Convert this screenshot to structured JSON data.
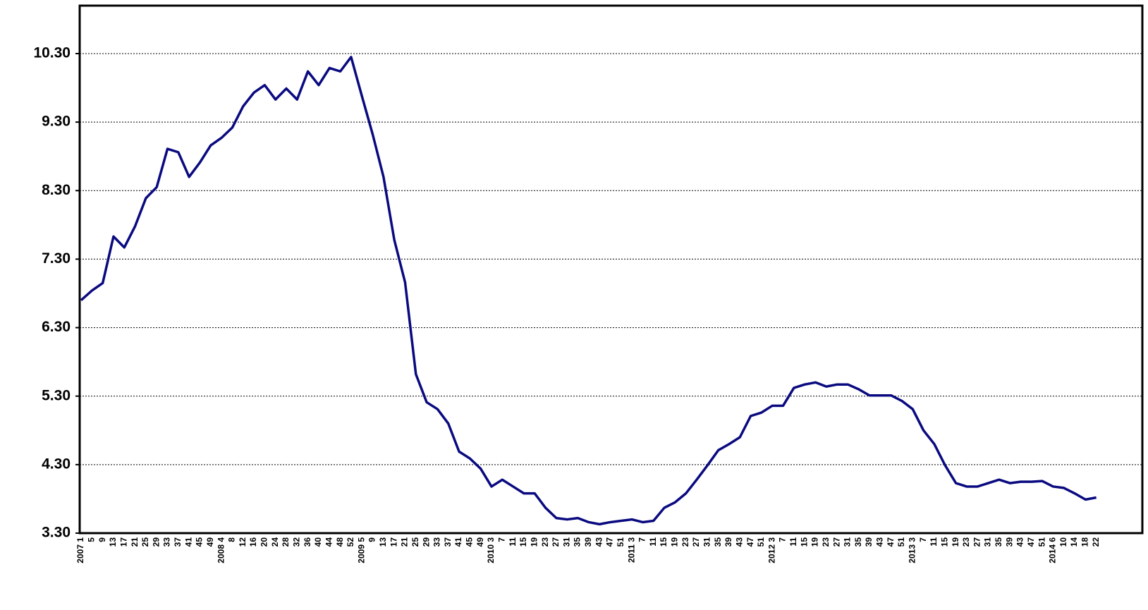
{
  "chart_data": {
    "type": "line",
    "categories": [
      "2007 1",
      "5",
      "9",
      "13",
      "17",
      "21",
      "25",
      "29",
      "33",
      "37",
      "41",
      "45",
      "49",
      "2008 4",
      "8",
      "12",
      "16",
      "20",
      "24",
      "28",
      "32",
      "36",
      "40",
      "44",
      "48",
      "52",
      "2009 5",
      "9",
      "13",
      "17",
      "21",
      "25",
      "29",
      "33",
      "37",
      "41",
      "45",
      "49",
      "2010 3",
      "7",
      "11",
      "15",
      "19",
      "23",
      "27",
      "31",
      "35",
      "39",
      "43",
      "47",
      "51",
      "2011 3",
      "7",
      "11",
      "15",
      "19",
      "23",
      "27",
      "31",
      "35",
      "39",
      "43",
      "47",
      "51",
      "2012 3",
      "7",
      "11",
      "15",
      "19",
      "23",
      "27",
      "31",
      "35",
      "39",
      "43",
      "47",
      "51",
      "2013 3",
      "7",
      "11",
      "15",
      "19",
      "23",
      "27",
      "31",
      "35",
      "39",
      "43",
      "47",
      "51",
      "2014 6",
      "10",
      "14",
      "18",
      "22"
    ],
    "series": [
      {
        "color": "#0a0a80",
        "values": [
          6.7,
          6.84,
          6.95,
          7.63,
          7.47,
          7.78,
          8.19,
          8.35,
          8.91,
          8.86,
          8.5,
          8.71,
          8.96,
          9.07,
          9.22,
          9.53,
          9.73,
          9.84,
          9.63,
          9.79,
          9.63,
          10.04,
          9.84,
          10.09,
          10.04,
          10.25,
          9.68,
          9.12,
          8.5,
          7.58,
          6.96,
          5.62,
          5.21,
          5.11,
          4.9,
          4.49,
          4.39,
          4.24,
          3.98,
          4.08,
          3.98,
          3.88,
          3.88,
          3.67,
          3.52,
          3.5,
          3.52,
          3.46,
          3.43,
          3.46,
          3.48,
          3.5,
          3.46,
          3.48,
          3.67,
          3.75,
          3.88,
          4.08,
          4.29,
          4.51,
          4.6,
          4.7,
          5.01,
          5.06,
          5.16,
          5.16,
          5.42,
          5.47,
          5.5,
          5.44,
          5.47,
          5.47,
          5.4,
          5.31,
          5.31,
          5.31,
          5.23,
          5.11,
          4.8,
          4.6,
          4.29,
          4.03,
          3.98,
          3.98,
          4.03,
          4.08,
          4.03,
          4.05,
          4.05,
          4.06,
          3.98,
          3.96,
          3.88,
          3.79,
          3.82
        ]
      }
    ],
    "ylim": [
      3.3,
      11.0
    ],
    "yticks": [
      {
        "value": 3.3,
        "label": "3.30"
      },
      {
        "value": 4.3,
        "label": "4.30"
      },
      {
        "value": 5.3,
        "label": "5.30"
      },
      {
        "value": 6.3,
        "label": "6.30"
      },
      {
        "value": 7.3,
        "label": "7.30"
      },
      {
        "value": 8.3,
        "label": "8.30"
      },
      {
        "value": 9.3,
        "label": "9.30"
      },
      {
        "value": 10.3,
        "label": "10.30"
      }
    ],
    "grid": true
  }
}
